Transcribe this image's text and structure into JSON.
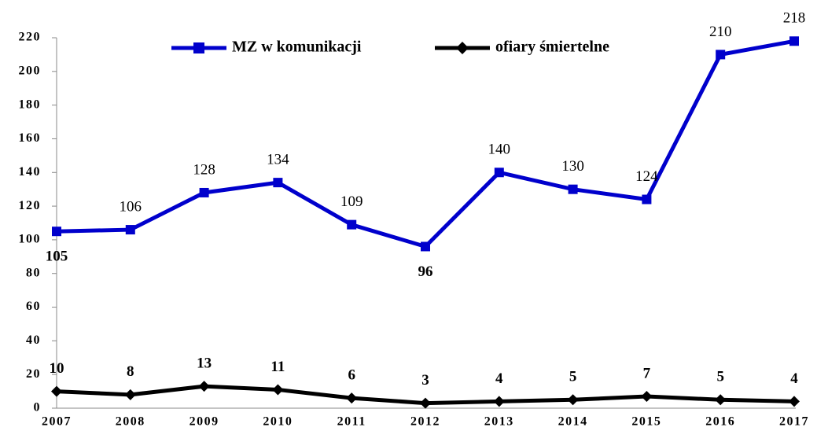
{
  "chart_data": {
    "type": "line",
    "categories": [
      "2007",
      "2008",
      "2009",
      "2010",
      "2011",
      "2012",
      "2013",
      "2014",
      "2015",
      "2016",
      "2017"
    ],
    "series": [
      {
        "name": "MZ w komunikacji",
        "color": "#0000cc",
        "values": [
          105,
          106,
          128,
          134,
          109,
          96,
          140,
          130,
          124,
          210,
          218
        ]
      },
      {
        "name": "ofiary śmiertelne",
        "color": "#000000",
        "values": [
          10,
          8,
          13,
          11,
          6,
          3,
          4,
          5,
          7,
          5,
          4
        ]
      }
    ],
    "ylim": [
      0,
      220
    ],
    "yticks": [
      0,
      20,
      40,
      60,
      80,
      100,
      120,
      140,
      160,
      180,
      200,
      220
    ],
    "grid": false,
    "legend": "top"
  }
}
